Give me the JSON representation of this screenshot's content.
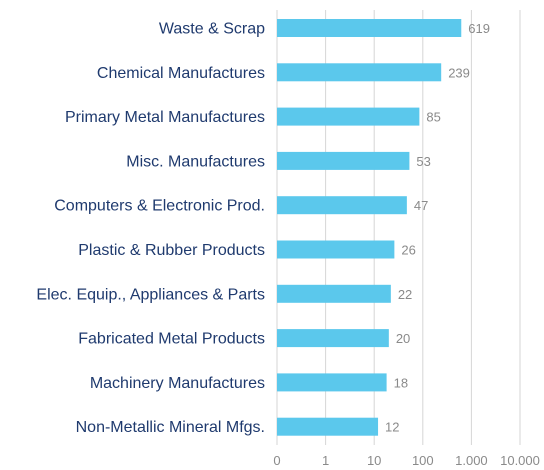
{
  "chart_data": {
    "type": "bar",
    "orientation": "horizontal",
    "x_scale": "log",
    "categories": [
      "Waste & Scrap",
      "Chemical Manufactures",
      "Primary Metal Manufactures",
      "Misc. Manufactures",
      "Computers & Electronic Prod.",
      "Plastic & Rubber Products",
      "Elec. Equip., Appliances & Parts",
      "Fabricated Metal Products",
      "Machinery Manufactures",
      "Non-Metallic Mineral Mfgs."
    ],
    "values": [
      619,
      239,
      85,
      53,
      47,
      26,
      22,
      20,
      18,
      12
    ],
    "value_labels": [
      "619",
      "239",
      "85",
      "53",
      "47",
      "26",
      "22",
      "20",
      "18",
      "12"
    ],
    "x_ticks": [
      0,
      1,
      10,
      100,
      1000,
      10000
    ],
    "x_tick_labels": [
      "0",
      "1",
      "10",
      "100",
      "1.000",
      "10.000"
    ],
    "title": "",
    "xlabel": "",
    "ylabel": "",
    "grid": true,
    "legend": "none",
    "colors": {
      "bar": "#5bc8ec",
      "category_text": "#1f3a6e",
      "value_text": "#8a8a8a",
      "grid": "#d6d6d6"
    }
  }
}
